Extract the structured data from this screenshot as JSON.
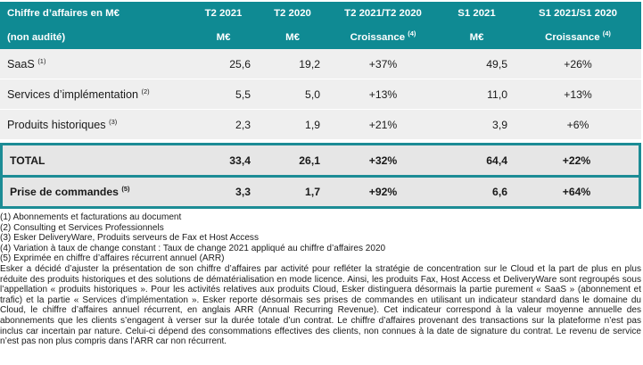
{
  "table": {
    "header": {
      "title": "Chiffre d’affaires en M€",
      "subtitle": "(non audité)",
      "columns": [
        {
          "label": "T2 2021",
          "unit": "M€",
          "unit_note": ""
        },
        {
          "label": "T2 2020",
          "unit": "M€",
          "unit_note": ""
        },
        {
          "label": "T2 2021/T2 2020",
          "unit": "Croissance",
          "unit_note": "(4)"
        },
        {
          "label": "S1 2021",
          "unit": "M€",
          "unit_note": ""
        },
        {
          "label": "S1 2021/S1 2020",
          "unit": "Croissance",
          "unit_note": "(4)"
        }
      ]
    },
    "rows": [
      {
        "label": "SaaS",
        "note": "(1)",
        "values": [
          "25,6",
          "19,2",
          "+37%",
          "49,5",
          "+26%"
        ]
      },
      {
        "label": "Services d’implémentation",
        "note": "(2)",
        "values": [
          "5,5",
          "5,0",
          "+13%",
          "11,0",
          "+13%"
        ]
      },
      {
        "label": "Produits historiques",
        "note": "(3)",
        "values": [
          "2,3",
          "1,9",
          "+21%",
          "3,9",
          "+6%"
        ]
      }
    ],
    "total": {
      "label": "TOTAL",
      "values": [
        "33,4",
        "26,1",
        "+32%",
        "64,4",
        "+22%"
      ]
    },
    "orders": {
      "label": "Prise de commandes",
      "note": "(5)",
      "values": [
        "3,3",
        "1,7",
        "+92%",
        "6,6",
        "+64%"
      ]
    }
  },
  "footnotes": [
    "(1) Abonnements et facturations au document",
    "(2) Consulting et Services Professionnels",
    "(3) Esker DeliveryWare, Produits serveurs de Fax et Host Access",
    "(4) Variation à taux de change constant : Taux de change 2021 appliqué au chiffre d’affaires 2020",
    "(5) Exprimée en chiffre d’affaires récurrent annuel (ARR)"
  ],
  "paragraph": "Esker a décidé d’ajuster la présentation de son chiffre d’affaires par activité pour refléter la stratégie de concentration sur le Cloud et la part de plus en plus réduite des produits historiques et des solutions de dématérialisation en mode licence. Ainsi, les produits Fax, Host Access et DeliveryWare sont regroupés sous l’appellation « produits historiques ». Pour les activités relatives aux produits Cloud, Esker distinguera désormais la partie purement « SaaS » (abonnement et trafic) et la partie « Services d’implémentation ». Esker reporte désormais ses prises de commandes en utilisant un indicateur standard dans le domaine du Cloud, le chiffre d’affaires annuel récurrent, en anglais ARR (Annual Recurring Revenue). Cet indicateur correspond à la valeur moyenne annuelle des abonnements que les clients s’engagent à verser sur la durée totale d’un contrat. Le chiffre d’affaires provenant des transactions sur la plateforme n’est pas inclus car incertain par nature. Celui-ci dépend des consommations effectives des clients, non connues à la date de signature du contrat. Le revenu de service n’est pas non plus compris dans l’ARR car non récurrent."
}
